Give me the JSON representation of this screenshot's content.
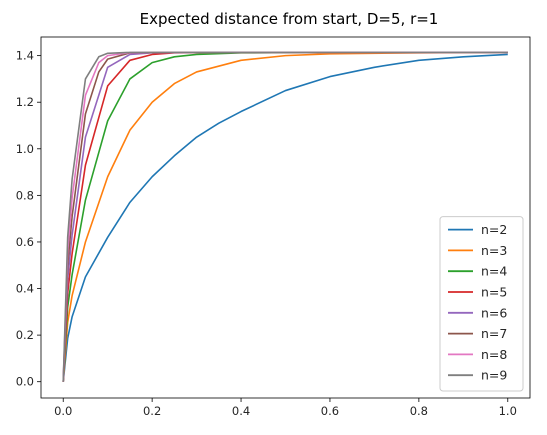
{
  "chart_data": {
    "type": "line",
    "title": "Expected distance from start, D=5, r=1",
    "xlabel": "",
    "ylabel": "",
    "xlim": [
      -0.05,
      1.05
    ],
    "ylim": [
      -0.07,
      1.48
    ],
    "x_ticks": [
      0.0,
      0.2,
      0.4,
      0.6,
      0.8,
      1.0
    ],
    "x_tick_labels": [
      "0.0",
      "0.2",
      "0.4",
      "0.6",
      "0.8",
      "1.0"
    ],
    "y_ticks": [
      0.0,
      0.2,
      0.4,
      0.6,
      0.8,
      1.0,
      1.2,
      1.4
    ],
    "y_tick_labels": [
      "0.0",
      "0.2",
      "0.4",
      "0.6",
      "0.8",
      "1.0",
      "1.2",
      "1.4"
    ],
    "grid": false,
    "legend_position": "lower-right",
    "series": [
      {
        "name": "n=2",
        "color": "#1f77b4",
        "points": [
          [
            0,
            0
          ],
          [
            0.01,
            0.186
          ],
          [
            0.02,
            0.279
          ],
          [
            0.05,
            0.45
          ],
          [
            0.1,
            0.62
          ],
          [
            0.15,
            0.77
          ],
          [
            0.2,
            0.88
          ],
          [
            0.25,
            0.97
          ],
          [
            0.3,
            1.05
          ],
          [
            0.35,
            1.11
          ],
          [
            0.4,
            1.16
          ],
          [
            0.5,
            1.25
          ],
          [
            0.6,
            1.31
          ],
          [
            0.7,
            1.35
          ],
          [
            0.8,
            1.38
          ],
          [
            0.9,
            1.395
          ],
          [
            1.0,
            1.405
          ]
        ]
      },
      {
        "name": "n=3",
        "color": "#ff7f0e",
        "points": [
          [
            0,
            0
          ],
          [
            0.01,
            0.255
          ],
          [
            0.02,
            0.37
          ],
          [
            0.05,
            0.6
          ],
          [
            0.1,
            0.88
          ],
          [
            0.15,
            1.08
          ],
          [
            0.2,
            1.2
          ],
          [
            0.25,
            1.28
          ],
          [
            0.3,
            1.33
          ],
          [
            0.4,
            1.38
          ],
          [
            0.5,
            1.4
          ],
          [
            0.6,
            1.408
          ],
          [
            0.8,
            1.412
          ],
          [
            1.0,
            1.414
          ]
        ]
      },
      {
        "name": "n=4",
        "color": "#2ca02c",
        "points": [
          [
            0,
            0
          ],
          [
            0.01,
            0.32
          ],
          [
            0.02,
            0.46
          ],
          [
            0.05,
            0.78
          ],
          [
            0.1,
            1.12
          ],
          [
            0.15,
            1.3
          ],
          [
            0.2,
            1.37
          ],
          [
            0.25,
            1.395
          ],
          [
            0.3,
            1.405
          ],
          [
            0.4,
            1.412
          ],
          [
            0.6,
            1.414
          ],
          [
            1.0,
            1.414
          ]
        ]
      },
      {
        "name": "n=5",
        "color": "#d62728",
        "points": [
          [
            0,
            0
          ],
          [
            0.01,
            0.38
          ],
          [
            0.02,
            0.55
          ],
          [
            0.05,
            0.93
          ],
          [
            0.1,
            1.27
          ],
          [
            0.15,
            1.38
          ],
          [
            0.2,
            1.405
          ],
          [
            0.25,
            1.412
          ],
          [
            0.35,
            1.414
          ],
          [
            1.0,
            1.414
          ]
        ]
      },
      {
        "name": "n=6",
        "color": "#9467bd",
        "points": [
          [
            0,
            0
          ],
          [
            0.01,
            0.44
          ],
          [
            0.02,
            0.63
          ],
          [
            0.05,
            1.05
          ],
          [
            0.1,
            1.35
          ],
          [
            0.15,
            1.405
          ],
          [
            0.2,
            1.412
          ],
          [
            0.3,
            1.414
          ],
          [
            1.0,
            1.414
          ]
        ]
      },
      {
        "name": "n=7",
        "color": "#8c564b",
        "points": [
          [
            0,
            0
          ],
          [
            0.01,
            0.5
          ],
          [
            0.02,
            0.71
          ],
          [
            0.05,
            1.15
          ],
          [
            0.08,
            1.33
          ],
          [
            0.1,
            1.385
          ],
          [
            0.15,
            1.412
          ],
          [
            0.25,
            1.414
          ],
          [
            1.0,
            1.414
          ]
        ]
      },
      {
        "name": "n=8",
        "color": "#e377c2",
        "points": [
          [
            0,
            0
          ],
          [
            0.01,
            0.56
          ],
          [
            0.02,
            0.79
          ],
          [
            0.05,
            1.23
          ],
          [
            0.08,
            1.37
          ],
          [
            0.1,
            1.4
          ],
          [
            0.15,
            1.413
          ],
          [
            0.2,
            1.414
          ],
          [
            1.0,
            1.414
          ]
        ]
      },
      {
        "name": "n=9",
        "color": "#7f7f7f",
        "points": [
          [
            0,
            0
          ],
          [
            0.01,
            0.62
          ],
          [
            0.02,
            0.87
          ],
          [
            0.05,
            1.3
          ],
          [
            0.08,
            1.395
          ],
          [
            0.1,
            1.41
          ],
          [
            0.15,
            1.414
          ],
          [
            1.0,
            1.414
          ]
        ]
      }
    ]
  }
}
